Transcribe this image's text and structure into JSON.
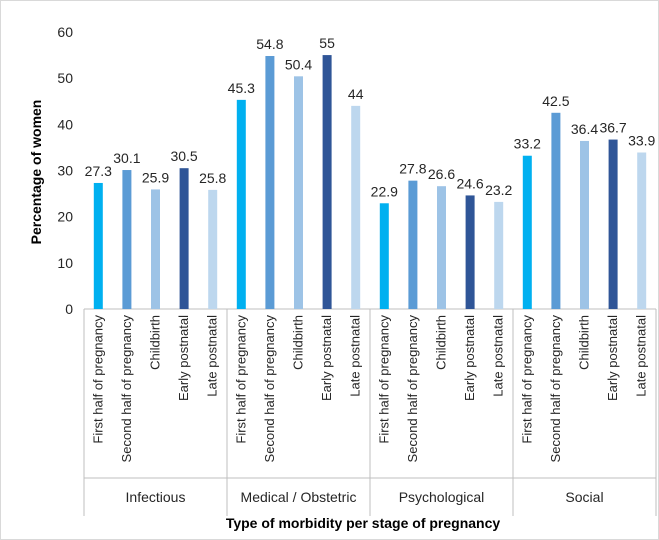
{
  "chart_data": {
    "type": "bar",
    "ylabel": "Percentage of women",
    "xlabel": "Type of morbidity per stage of pregnancy",
    "ylim": [
      0,
      60
    ],
    "yticks": [
      "0",
      "10",
      "20",
      "30",
      "40",
      "50",
      "60"
    ],
    "grid": false,
    "stages": [
      "First half of pregnancy",
      "Second half of pregnancy",
      "Childbirth",
      "Early postnatal",
      "Late postnatal"
    ],
    "stage_colors": [
      "#00b0f0",
      "#5b9bd5",
      "#9dc3e6",
      "#2f5597",
      "#bdd7ee"
    ],
    "groups": [
      {
        "name": "Infectious",
        "values": [
          27.3,
          30.1,
          25.9,
          30.5,
          25.8
        ],
        "labels": [
          "27.3",
          "30.1",
          "25.9",
          "30.5",
          "25.8"
        ]
      },
      {
        "name": "Medical / Obstetric",
        "values": [
          45.3,
          54.8,
          50.4,
          55,
          44
        ],
        "labels": [
          "45.3",
          "54.8",
          "50.4",
          "55",
          "44"
        ]
      },
      {
        "name": "Psychological",
        "values": [
          22.9,
          27.8,
          26.6,
          24.6,
          23.2
        ],
        "labels": [
          "22.9",
          "27.8",
          "26.6",
          "24.6",
          "23.2"
        ]
      },
      {
        "name": "Social",
        "values": [
          33.2,
          42.5,
          36.4,
          36.7,
          33.9
        ],
        "labels": [
          "33.2",
          "42.5",
          "36.4",
          "36.7",
          "33.9"
        ]
      }
    ]
  }
}
